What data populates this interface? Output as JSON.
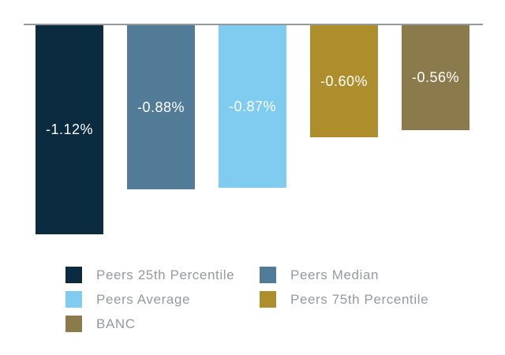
{
  "chart_data": {
    "type": "bar",
    "categories": [
      "Peers 25th Percentile",
      "Peers Median",
      "Peers Average",
      "Peers 75th Percentile",
      "BANC"
    ],
    "values": [
      -1.12,
      -0.88,
      -0.87,
      -0.6,
      -0.56
    ],
    "value_labels": [
      "-1.12%",
      "-0.88%",
      "-0.87%",
      "-0.60%",
      "-0.56%"
    ],
    "colors": [
      "#0b2b40",
      "#527b97",
      "#7fccf0",
      "#ae8e2c",
      "#8b7a4b"
    ],
    "title": "",
    "xlabel": "",
    "ylabel": "",
    "ylim": [
      -1.25,
      0
    ],
    "grid": false,
    "baseline_color": "#95989a",
    "value_label_color": "#ffffff",
    "legend_position": "bottom",
    "legend_text_color": "#97999b",
    "legend": [
      {
        "label": "Peers 25th Percentile",
        "color": "#0b2b40"
      },
      {
        "label": "Peers Median",
        "color": "#527b97"
      },
      {
        "label": "Peers Average",
        "color": "#7fccf0"
      },
      {
        "label": "Peers 75th Percentile",
        "color": "#ae8e2c"
      },
      {
        "label": "BANC",
        "color": "#8b7a4b"
      }
    ]
  }
}
